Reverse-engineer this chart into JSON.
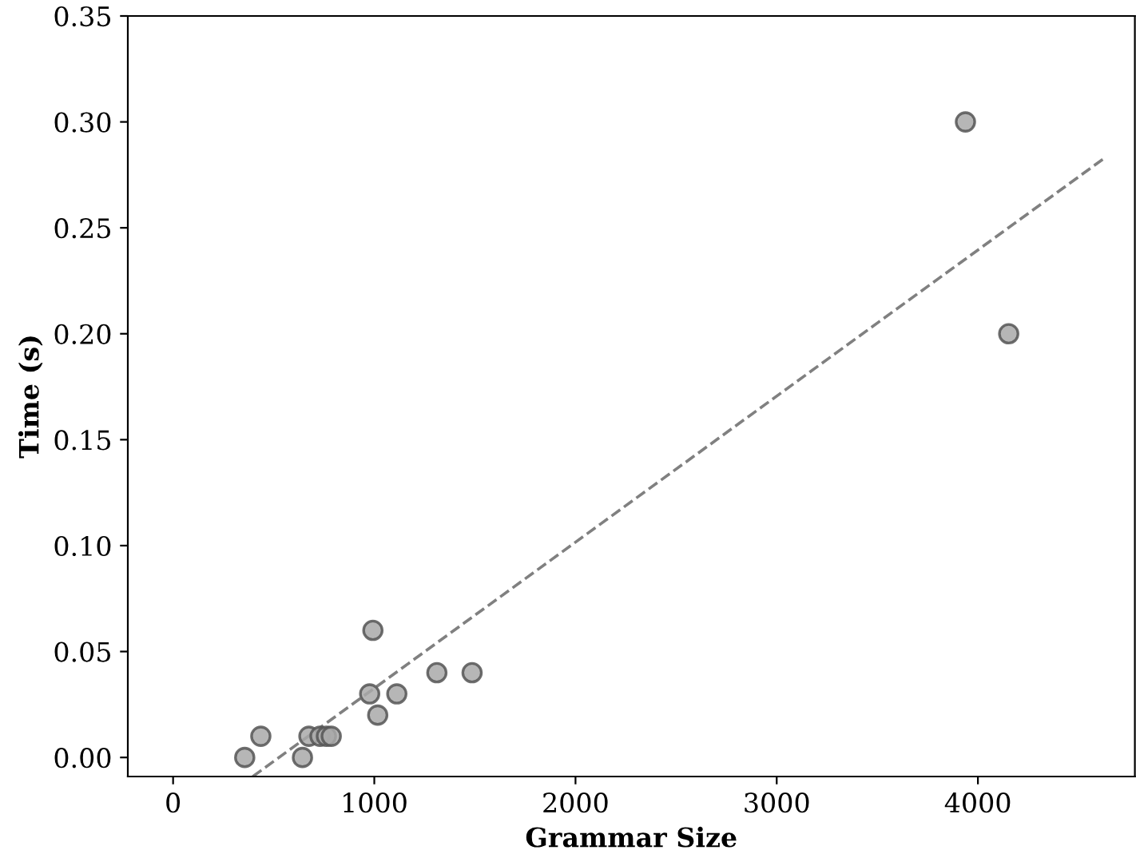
{
  "chart_data": {
    "type": "scatter",
    "xlabel": "Grammar Size",
    "ylabel": "Time (s)",
    "xlim": [
      -225,
      4780
    ],
    "ylim": [
      -0.009,
      0.35
    ],
    "xticks": [
      0,
      1000,
      2000,
      3000,
      4000
    ],
    "yticks": [
      {
        "value": 0,
        "label": "0.00"
      },
      {
        "value": 0.05,
        "label": "0.05"
      },
      {
        "value": 0.1,
        "label": "0.10"
      },
      {
        "value": 0.15,
        "label": "0.15"
      },
      {
        "value": 0.2,
        "label": "0.20"
      },
      {
        "value": 0.25,
        "label": "0.25"
      },
      {
        "value": 0.3,
        "label": "0.30"
      },
      {
        "value": 0.35,
        "label": "0.35"
      }
    ],
    "grid": false,
    "series": [
      {
        "color": "#a9a9a9",
        "marker": "circle",
        "x": [
          356,
          436,
          643,
          675,
          730,
          762,
          786,
          977,
          993,
          1017,
          1112,
          1311,
          1486,
          3938,
          4153
        ],
        "values": [
          0.0,
          0.01,
          0.0,
          0.01,
          0.01,
          0.01,
          0.01,
          0.03,
          0.06,
          0.02,
          0.03,
          0.04,
          0.04,
          0.3,
          0.2
        ]
      },
      {
        "type": "line",
        "color": "#808080",
        "line_style": "dashed",
        "marker": "none",
        "x": [
          396,
          4630
        ],
        "values": [
          -0.009,
          0.283
        ]
      }
    ]
  }
}
